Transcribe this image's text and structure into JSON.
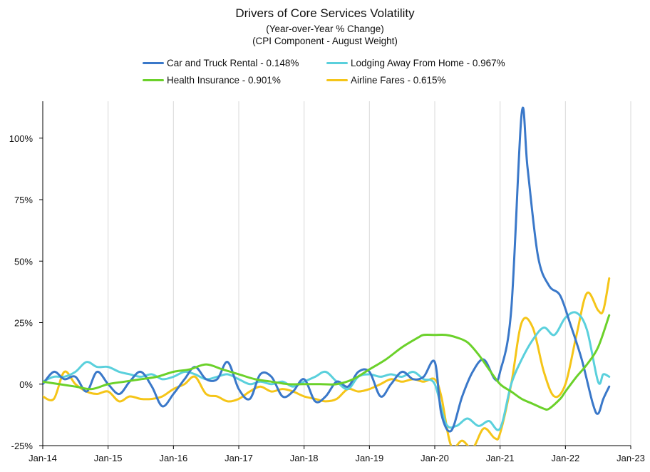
{
  "chart_data": {
    "type": "line",
    "title": "Drivers of Core Services Volatility",
    "subtitle": "(Year-over-Year % Change)",
    "subtitle2": "(CPI Component - August Weight)",
    "xlabel": "",
    "ylabel": "",
    "ylim": [
      -25,
      115
    ],
    "yticks": [
      -25,
      0,
      25,
      50,
      75,
      100
    ],
    "ytick_labels": [
      "-25%",
      "0%",
      "25%",
      "50%",
      "75%",
      "100%"
    ],
    "xticks": [
      2014,
      2015,
      2016,
      2017,
      2018,
      2019,
      2020,
      2021,
      2022,
      2023
    ],
    "xtick_labels": [
      "Jan-14",
      "Jan-15",
      "Jan-16",
      "Jan-17",
      "Jan-18",
      "Jan-19",
      "Jan-20",
      "Jan-21",
      "Jan-22",
      "Jan-23"
    ],
    "xlim": [
      2014,
      2023
    ],
    "grid": "vertical",
    "series": [
      {
        "name": "Car and Truck Rental - 0.148%",
        "color": "#3a78c9",
        "points": [
          [
            2014.0,
            0
          ],
          [
            2014.17,
            5
          ],
          [
            2014.33,
            2
          ],
          [
            2014.5,
            3
          ],
          [
            2014.67,
            -3
          ],
          [
            2014.83,
            5
          ],
          [
            2015.0,
            0
          ],
          [
            2015.17,
            -4
          ],
          [
            2015.33,
            1
          ],
          [
            2015.5,
            5
          ],
          [
            2015.67,
            -1
          ],
          [
            2015.83,
            -9
          ],
          [
            2016.0,
            -4
          ],
          [
            2016.17,
            2
          ],
          [
            2016.33,
            7
          ],
          [
            2016.5,
            2
          ],
          [
            2016.67,
            2
          ],
          [
            2016.83,
            9
          ],
          [
            2017.0,
            -2
          ],
          [
            2017.17,
            -6
          ],
          [
            2017.33,
            4
          ],
          [
            2017.5,
            3
          ],
          [
            2017.67,
            -5
          ],
          [
            2017.83,
            -3
          ],
          [
            2018.0,
            2
          ],
          [
            2018.17,
            -7
          ],
          [
            2018.33,
            -5
          ],
          [
            2018.5,
            1
          ],
          [
            2018.67,
            -1
          ],
          [
            2018.83,
            5
          ],
          [
            2019.0,
            5
          ],
          [
            2019.17,
            -5
          ],
          [
            2019.33,
            0
          ],
          [
            2019.5,
            5
          ],
          [
            2019.67,
            2
          ],
          [
            2019.83,
            3
          ],
          [
            2020.0,
            9
          ],
          [
            2020.1,
            -12
          ],
          [
            2020.25,
            -19
          ],
          [
            2020.42,
            -5
          ],
          [
            2020.58,
            5
          ],
          [
            2020.75,
            10
          ],
          [
            2020.92,
            2
          ],
          [
            2021.0,
            5
          ],
          [
            2021.17,
            30
          ],
          [
            2021.33,
            110
          ],
          [
            2021.42,
            88
          ],
          [
            2021.58,
            52
          ],
          [
            2021.75,
            40
          ],
          [
            2021.92,
            36
          ],
          [
            2022.08,
            24
          ],
          [
            2022.25,
            10
          ],
          [
            2022.42,
            -8
          ],
          [
            2022.5,
            -12
          ],
          [
            2022.58,
            -6
          ],
          [
            2022.67,
            -1
          ]
        ]
      },
      {
        "name": "Lodging Away From Home - 0.967%",
        "color": "#5ad0dc",
        "points": [
          [
            2014.0,
            1
          ],
          [
            2014.17,
            3
          ],
          [
            2014.33,
            3
          ],
          [
            2014.5,
            5
          ],
          [
            2014.67,
            9
          ],
          [
            2014.83,
            7
          ],
          [
            2015.0,
            7
          ],
          [
            2015.17,
            5
          ],
          [
            2015.33,
            4
          ],
          [
            2015.5,
            3
          ],
          [
            2015.67,
            4
          ],
          [
            2015.83,
            2
          ],
          [
            2016.0,
            3
          ],
          [
            2016.17,
            5
          ],
          [
            2016.33,
            4
          ],
          [
            2016.5,
            2
          ],
          [
            2016.67,
            3
          ],
          [
            2016.83,
            4
          ],
          [
            2017.0,
            2
          ],
          [
            2017.17,
            0
          ],
          [
            2017.33,
            1
          ],
          [
            2017.5,
            0
          ],
          [
            2017.67,
            1
          ],
          [
            2017.83,
            -1
          ],
          [
            2018.0,
            1
          ],
          [
            2018.17,
            3
          ],
          [
            2018.33,
            5
          ],
          [
            2018.5,
            1
          ],
          [
            2018.67,
            -2
          ],
          [
            2018.83,
            3
          ],
          [
            2019.0,
            4
          ],
          [
            2019.17,
            3
          ],
          [
            2019.33,
            4
          ],
          [
            2019.5,
            3
          ],
          [
            2019.67,
            5
          ],
          [
            2019.83,
            2
          ],
          [
            2020.0,
            0
          ],
          [
            2020.17,
            -16
          ],
          [
            2020.33,
            -17
          ],
          [
            2020.5,
            -14
          ],
          [
            2020.67,
            -17
          ],
          [
            2020.83,
            -15
          ],
          [
            2021.0,
            -18
          ],
          [
            2021.17,
            0
          ],
          [
            2021.33,
            10
          ],
          [
            2021.5,
            18
          ],
          [
            2021.67,
            23
          ],
          [
            2021.83,
            20
          ],
          [
            2022.0,
            27
          ],
          [
            2022.17,
            29
          ],
          [
            2022.33,
            22
          ],
          [
            2022.5,
            1
          ],
          [
            2022.58,
            4
          ],
          [
            2022.67,
            3
          ]
        ]
      },
      {
        "name": "Health Insurance - 0.901%",
        "color": "#6bd12a",
        "points": [
          [
            2014.0,
            1
          ],
          [
            2014.25,
            0
          ],
          [
            2014.5,
            -1
          ],
          [
            2014.75,
            -2
          ],
          [
            2015.0,
            0
          ],
          [
            2015.25,
            1
          ],
          [
            2015.5,
            2
          ],
          [
            2015.75,
            3
          ],
          [
            2016.0,
            5
          ],
          [
            2016.25,
            6
          ],
          [
            2016.5,
            8
          ],
          [
            2016.75,
            6
          ],
          [
            2017.0,
            4
          ],
          [
            2017.25,
            2
          ],
          [
            2017.5,
            1
          ],
          [
            2017.75,
            0
          ],
          [
            2018.0,
            0
          ],
          [
            2018.25,
            0
          ],
          [
            2018.5,
            0
          ],
          [
            2018.75,
            2
          ],
          [
            2019.0,
            6
          ],
          [
            2019.25,
            10
          ],
          [
            2019.5,
            15
          ],
          [
            2019.75,
            19
          ],
          [
            2019.83,
            20
          ],
          [
            2020.0,
            20
          ],
          [
            2020.17,
            20
          ],
          [
            2020.33,
            19
          ],
          [
            2020.5,
            17
          ],
          [
            2020.67,
            12
          ],
          [
            2020.83,
            6
          ],
          [
            2021.0,
            0
          ],
          [
            2021.17,
            -3
          ],
          [
            2021.33,
            -6
          ],
          [
            2021.5,
            -8
          ],
          [
            2021.67,
            -10
          ],
          [
            2021.75,
            -10
          ],
          [
            2021.92,
            -6
          ],
          [
            2022.0,
            -3
          ],
          [
            2022.17,
            3
          ],
          [
            2022.33,
            8
          ],
          [
            2022.5,
            15
          ],
          [
            2022.67,
            28
          ]
        ]
      },
      {
        "name": "Airline Fares - 0.615%",
        "color": "#f5c518",
        "points": [
          [
            2014.0,
            -5
          ],
          [
            2014.17,
            -6
          ],
          [
            2014.33,
            5
          ],
          [
            2014.5,
            0
          ],
          [
            2014.67,
            -3
          ],
          [
            2014.83,
            -4
          ],
          [
            2015.0,
            -3
          ],
          [
            2015.17,
            -7
          ],
          [
            2015.33,
            -5
          ],
          [
            2015.5,
            -6
          ],
          [
            2015.67,
            -6
          ],
          [
            2015.83,
            -5
          ],
          [
            2016.0,
            -2
          ],
          [
            2016.17,
            0
          ],
          [
            2016.33,
            3
          ],
          [
            2016.5,
            -4
          ],
          [
            2016.67,
            -5
          ],
          [
            2016.83,
            -7
          ],
          [
            2017.0,
            -6
          ],
          [
            2017.17,
            -3
          ],
          [
            2017.33,
            -1
          ],
          [
            2017.5,
            -3
          ],
          [
            2017.67,
            -2
          ],
          [
            2017.83,
            -3
          ],
          [
            2018.0,
            -5
          ],
          [
            2018.17,
            -6
          ],
          [
            2018.33,
            -7
          ],
          [
            2018.5,
            -6
          ],
          [
            2018.67,
            -2
          ],
          [
            2018.83,
            -3
          ],
          [
            2019.0,
            -2
          ],
          [
            2019.17,
            0
          ],
          [
            2019.33,
            2
          ],
          [
            2019.5,
            1
          ],
          [
            2019.67,
            2
          ],
          [
            2019.83,
            1
          ],
          [
            2020.0,
            2
          ],
          [
            2020.1,
            -5
          ],
          [
            2020.25,
            -25
          ],
          [
            2020.42,
            -23
          ],
          [
            2020.58,
            -26
          ],
          [
            2020.75,
            -18
          ],
          [
            2020.92,
            -22
          ],
          [
            2021.0,
            -20
          ],
          [
            2021.17,
            0
          ],
          [
            2021.33,
            25
          ],
          [
            2021.5,
            23
          ],
          [
            2021.67,
            5
          ],
          [
            2021.83,
            -5
          ],
          [
            2022.0,
            0
          ],
          [
            2022.17,
            20
          ],
          [
            2022.33,
            37
          ],
          [
            2022.5,
            30
          ],
          [
            2022.58,
            30
          ],
          [
            2022.67,
            43
          ]
        ]
      }
    ],
    "legend": {
      "position": "top",
      "entries": [
        "Car and Truck Rental - 0.148%",
        "Lodging Away From Home - 0.967%",
        "Health Insurance - 0.901%",
        "Airline Fares - 0.615%"
      ]
    }
  }
}
